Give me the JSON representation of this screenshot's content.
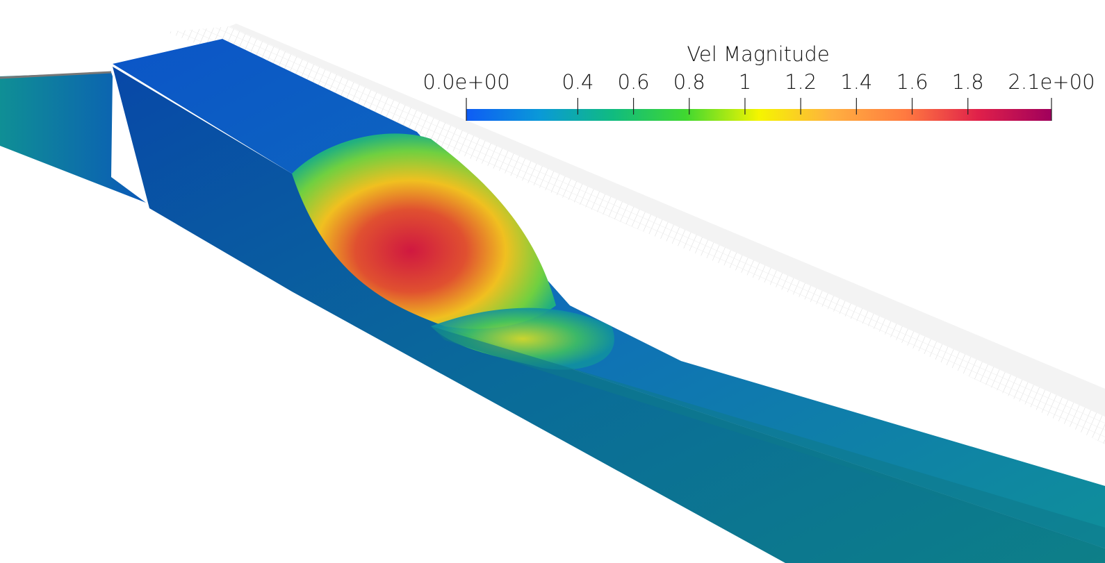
{
  "colorbar": {
    "title": "Vel Magnitude",
    "lim": [
      {
        "value": 0,
        "label": "0.0e+00"
      },
      {
        "value": 2.1,
        "label": "2.1e+00"
      }
    ],
    "ticks": [
      0.4,
      0.6,
      0.8,
      1,
      1.2,
      1.4,
      1.6,
      1.8
    ],
    "colormap": [
      "#0e5cf5",
      "#0a99d8",
      "#10bb80",
      "#40d830",
      "#f5f500",
      "#ffb040",
      "#ff7a40",
      "#e0204a",
      "#a0005c"
    ]
  }
}
